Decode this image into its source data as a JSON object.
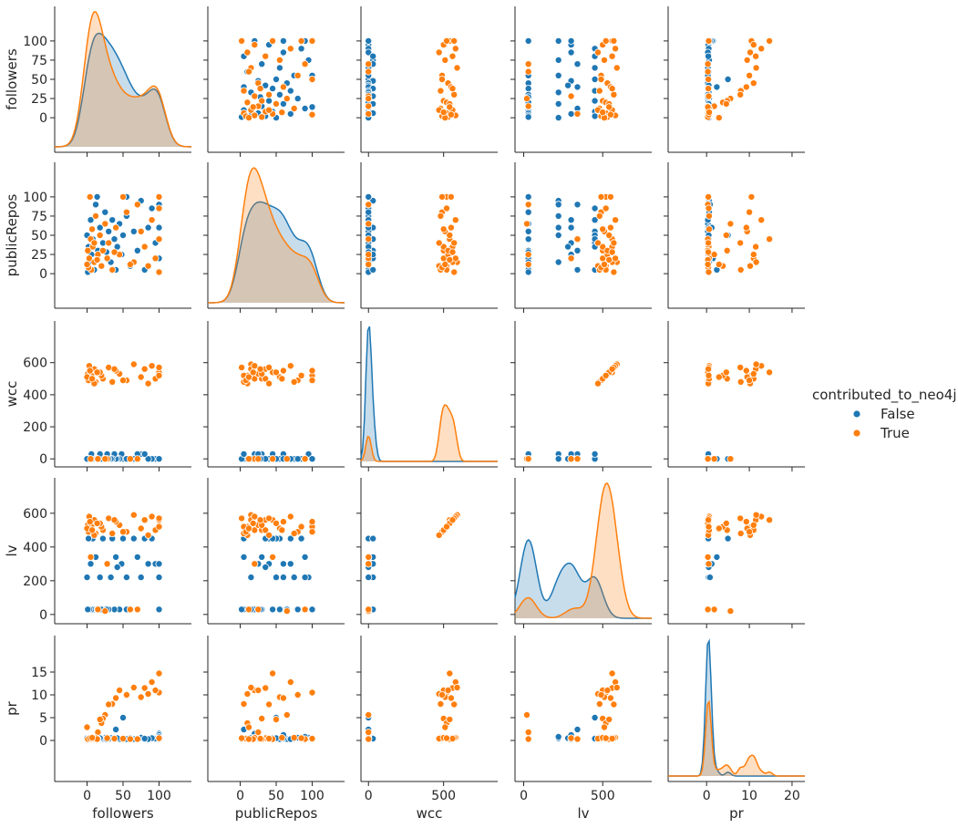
{
  "chart_data": {
    "type": "scatter",
    "subtype": "pairplot",
    "variables": [
      "followers",
      "publicRepos",
      "wcc",
      "lv",
      "pr"
    ],
    "ranges": {
      "followers": [
        -45,
        145
      ],
      "publicRepos": [
        -45,
        145
      ],
      "wcc": [
        -50,
        860
      ],
      "lv": [
        -55,
        810
      ],
      "pr": [
        -9,
        23
      ]
    },
    "ticks": {
      "followers": [
        0,
        25,
        50,
        75,
        100
      ],
      "publicRepos": [
        0,
        25,
        50,
        75,
        100
      ],
      "wcc": [
        0,
        200,
        400,
        600
      ],
      "lv": [
        0,
        200,
        400,
        600
      ],
      "pr": [
        0,
        5,
        10,
        15
      ],
      "pr_x": [
        0,
        10,
        20
      ],
      "wcc_x": [
        0,
        500
      ],
      "lv_x": [
        0,
        500
      ],
      "followers_x": [
        0,
        50,
        100
      ],
      "publicRepos_x": [
        0,
        50,
        100
      ]
    },
    "hue": "contributed_to_neo4j",
    "legend": {
      "title": "contributed_to_neo4j",
      "entries": [
        {
          "label": "False",
          "color": "#1f77b4"
        },
        {
          "label": "True",
          "color": "#ff7f0e"
        }
      ],
      "placement": "right-center"
    },
    "series": [
      {
        "name": "False",
        "color": "#1f77b4",
        "points": [
          {
            "followers": 100,
            "publicRepos": 100,
            "wcc": 0,
            "lv": 30,
            "pr": 0.3
          },
          {
            "followers": 100,
            "publicRepos": 20,
            "wcc": 0,
            "lv": 30,
            "pr": 1.5
          },
          {
            "followers": 95,
            "publicRepos": 40,
            "wcc": 0,
            "lv": 300,
            "pr": 0.4
          },
          {
            "followers": 90,
            "publicRepos": 85,
            "wcc": 0,
            "lv": 450,
            "pr": 0.5
          },
          {
            "followers": 85,
            "publicRepos": 60,
            "wcc": 0,
            "lv": 300,
            "pr": 0.3
          },
          {
            "followers": 75,
            "publicRepos": 95,
            "wcc": 30,
            "lv": 220,
            "pr": 0.6
          },
          {
            "followers": 70,
            "publicRepos": 30,
            "wcc": 30,
            "lv": 340,
            "pr": 0.4
          },
          {
            "followers": 65,
            "publicRepos": 55,
            "wcc": 0,
            "lv": 450,
            "pr": 0.3
          },
          {
            "followers": 60,
            "publicRepos": 10,
            "wcc": 0,
            "lv": 30,
            "pr": 0.5
          },
          {
            "followers": 55,
            "publicRepos": 75,
            "wcc": 0,
            "lv": 220,
            "pr": 0.4
          },
          {
            "followers": 50,
            "publicRepos": 50,
            "wcc": 0,
            "lv": 450,
            "pr": 5.0
          },
          {
            "followers": 48,
            "publicRepos": 25,
            "wcc": 30,
            "lv": 300,
            "pr": 0.4
          },
          {
            "followers": 45,
            "publicRepos": 65,
            "wcc": 0,
            "lv": 30,
            "pr": 0.3
          },
          {
            "followers": 42,
            "publicRepos": 35,
            "wcc": 0,
            "lv": 280,
            "pr": 0.5
          },
          {
            "followers": 40,
            "publicRepos": 5,
            "wcc": 0,
            "lv": 340,
            "pr": 2.4
          },
          {
            "followers": 38,
            "publicRepos": 45,
            "wcc": 30,
            "lv": 30,
            "pr": 0.3
          },
          {
            "followers": 35,
            "publicRepos": 70,
            "wcc": 0,
            "lv": 450,
            "pr": 0.4
          },
          {
            "followers": 33,
            "publicRepos": 15,
            "wcc": 0,
            "lv": 220,
            "pr": 0.5
          },
          {
            "followers": 30,
            "publicRepos": 55,
            "wcc": 0,
            "lv": 30,
            "pr": 0.3
          },
          {
            "followers": 28,
            "publicRepos": 20,
            "wcc": 30,
            "lv": 300,
            "pr": 0.4
          },
          {
            "followers": 25,
            "publicRepos": 80,
            "wcc": 0,
            "lv": 30,
            "pr": 0.6
          },
          {
            "followers": 22,
            "publicRepos": 40,
            "wcc": 0,
            "lv": 450,
            "pr": 0.3
          },
          {
            "followers": 20,
            "publicRepos": 10,
            "wcc": 0,
            "lv": 30,
            "pr": 0.4
          },
          {
            "followers": 18,
            "publicRepos": 60,
            "wcc": 30,
            "lv": 220,
            "pr": 0.5
          },
          {
            "followers": 15,
            "publicRepos": 30,
            "wcc": 0,
            "lv": 30,
            "pr": 0.3
          },
          {
            "followers": 12,
            "publicRepos": 90,
            "wcc": 0,
            "lv": 340,
            "pr": 0.4
          },
          {
            "followers": 10,
            "publicRepos": 5,
            "wcc": 0,
            "lv": 30,
            "pr": 0.3
          },
          {
            "followers": 8,
            "publicRepos": 45,
            "wcc": 0,
            "lv": 450,
            "pr": 0.5
          },
          {
            "followers": 6,
            "publicRepos": 25,
            "wcc": 30,
            "lv": 30,
            "pr": 0.4
          },
          {
            "followers": 5,
            "publicRepos": 70,
            "wcc": 0,
            "lv": 300,
            "pr": 0.3
          },
          {
            "followers": 3,
            "publicRepos": 15,
            "wcc": 0,
            "lv": 30,
            "pr": 0.6
          },
          {
            "followers": 2,
            "publicRepos": 35,
            "wcc": 0,
            "lv": 450,
            "pr": 0.4
          },
          {
            "followers": 1,
            "publicRepos": 2,
            "wcc": 0,
            "lv": 30,
            "pr": 0.3
          },
          {
            "followers": 0,
            "publicRepos": 50,
            "wcc": 0,
            "lv": 220,
            "pr": 0.5
          },
          {
            "followers": 14,
            "publicRepos": 100,
            "wcc": 0,
            "lv": 30,
            "pr": 0.4
          },
          {
            "followers": 55,
            "publicRepos": 100,
            "wcc": 0,
            "lv": 30,
            "pr": 0.3
          },
          {
            "followers": 80,
            "publicRepos": 5,
            "wcc": 30,
            "lv": 450,
            "pr": 0.4
          },
          {
            "followers": 100,
            "publicRepos": 60,
            "wcc": 0,
            "lv": 300,
            "pr": 1.2
          },
          {
            "followers": 100,
            "publicRepos": 90,
            "wcc": 0,
            "lv": 220,
            "pr": 0.8
          },
          {
            "followers": 27,
            "publicRepos": 28,
            "wcc": 0,
            "lv": 30,
            "pr": 0.3
          }
        ]
      },
      {
        "name": "True",
        "color": "#ff7f0e",
        "points": [
          {
            "followers": 100,
            "publicRepos": 100,
            "wcc": 520,
            "lv": 520,
            "pr": 10.5
          },
          {
            "followers": 100,
            "publicRepos": 45,
            "wcc": 540,
            "lv": 560,
            "pr": 14.7
          },
          {
            "followers": 95,
            "publicRepos": 20,
            "wcc": 500,
            "lv": 500,
            "pr": 11.0
          },
          {
            "followers": 90,
            "publicRepos": 70,
            "wcc": 580,
            "lv": 580,
            "pr": 12.8
          },
          {
            "followers": 85,
            "publicRepos": 10,
            "wcc": 470,
            "lv": 470,
            "pr": 10.2
          },
          {
            "followers": 80,
            "publicRepos": 35,
            "wcc": 560,
            "lv": 560,
            "pr": 11.5
          },
          {
            "followers": 75,
            "publicRepos": 55,
            "wcc": 510,
            "lv": 510,
            "pr": 9.5
          },
          {
            "followers": 65,
            "publicRepos": 15,
            "wcc": 590,
            "lv": 590,
            "pr": 11.6
          },
          {
            "followers": 55,
            "publicRepos": 80,
            "wcc": 490,
            "lv": 490,
            "pr": 10.0
          },
          {
            "followers": 45,
            "publicRepos": 25,
            "wcc": 530,
            "lv": 530,
            "pr": 11.0
          },
          {
            "followers": 40,
            "publicRepos": 60,
            "wcc": 550,
            "lv": 550,
            "pr": 9.3
          },
          {
            "followers": 35,
            "publicRepos": 5,
            "wcc": 480,
            "lv": 480,
            "pr": 8.0
          },
          {
            "followers": 30,
            "publicRepos": 40,
            "wcc": 570,
            "lv": 570,
            "pr": 7.9
          },
          {
            "followers": 28,
            "publicRepos": 20,
            "wcc": 0,
            "lv": 300,
            "pr": 0.5
          },
          {
            "followers": 25,
            "publicRepos": 65,
            "wcc": 0,
            "lv": 20,
            "pr": 5.6
          },
          {
            "followers": 22,
            "publicRepos": 30,
            "wcc": 500,
            "lv": 500,
            "pr": 4.8
          },
          {
            "followers": 20,
            "publicRepos": 10,
            "wcc": 520,
            "lv": 520,
            "pr": 3.8
          },
          {
            "followers": 18,
            "publicRepos": 50,
            "wcc": 540,
            "lv": 540,
            "pr": 4.6
          },
          {
            "followers": 15,
            "publicRepos": 25,
            "wcc": 0,
            "lv": 30,
            "pr": 1.8
          },
          {
            "followers": 12,
            "publicRepos": 75,
            "wcc": 480,
            "lv": 480,
            "pr": 0.6
          },
          {
            "followers": 10,
            "publicRepos": 15,
            "wcc": 560,
            "lv": 560,
            "pr": 0.3
          },
          {
            "followers": 8,
            "publicRepos": 35,
            "wcc": 500,
            "lv": 500,
            "pr": 0.5
          },
          {
            "followers": 6,
            "publicRepos": 5,
            "wcc": 520,
            "lv": 520,
            "pr": 0.4
          },
          {
            "followers": 5,
            "publicRepos": 45,
            "wcc": 0,
            "lv": 340,
            "pr": 0.3
          },
          {
            "followers": 3,
            "publicRepos": 20,
            "wcc": 580,
            "lv": 580,
            "pr": 0.6
          },
          {
            "followers": 2,
            "publicRepos": 8,
            "wcc": 490,
            "lv": 490,
            "pr": 0.4
          },
          {
            "followers": 1,
            "publicRepos": 30,
            "wcc": 530,
            "lv": 530,
            "pr": 0.3
          },
          {
            "followers": 0,
            "publicRepos": 12,
            "wcc": 510,
            "lv": 510,
            "pr": 2.9
          },
          {
            "followers": 4,
            "publicRepos": 100,
            "wcc": 550,
            "lv": 550,
            "pr": 0.5
          },
          {
            "followers": 50,
            "publicRepos": 100,
            "wcc": 490,
            "lv": 490,
            "pr": 0.4
          },
          {
            "followers": 70,
            "publicRepos": 90,
            "wcc": 0,
            "lv": 30,
            "pr": 0.3
          },
          {
            "followers": 100,
            "publicRepos": 2,
            "wcc": 570,
            "lv": 570,
            "pr": 0.5
          },
          {
            "followers": 10,
            "publicRepos": 40,
            "wcc": 470,
            "lv": 470,
            "pr": 0.4
          },
          {
            "followers": 14,
            "publicRepos": 18,
            "wcc": 540,
            "lv": 540,
            "pr": 0.3
          },
          {
            "followers": 7,
            "publicRepos": 58,
            "wcc": 500,
            "lv": 500,
            "pr": 0.6
          },
          {
            "followers": 38,
            "publicRepos": 28,
            "wcc": 560,
            "lv": 560,
            "pr": 0.4
          },
          {
            "followers": 60,
            "publicRepos": 12,
            "wcc": 0,
            "lv": 30,
            "pr": 0.3
          },
          {
            "followers": 100,
            "publicRepos": 85,
            "wcc": 520,
            "lv": 520,
            "pr": 0.5
          }
        ]
      }
    ],
    "kde_note": "diagonal panels show per-class density curves"
  }
}
